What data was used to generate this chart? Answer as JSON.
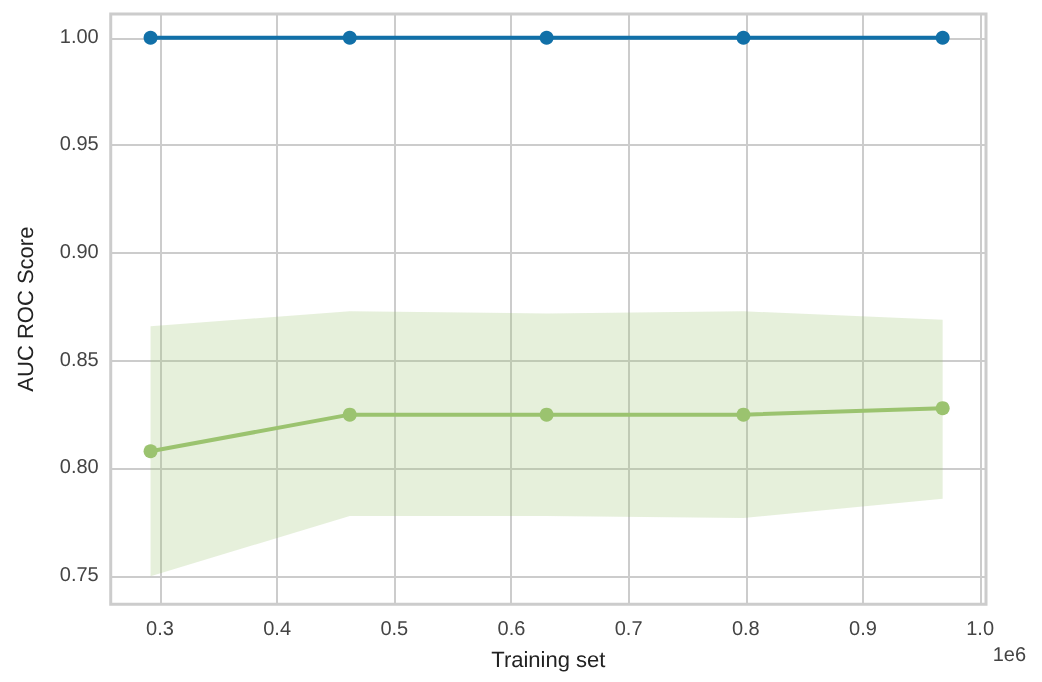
{
  "chart_data": {
    "type": "line",
    "xlabel": "Training set",
    "ylabel": "AUC ROC Score",
    "x": [
      0.292,
      0.462,
      0.63,
      0.798,
      0.968
    ],
    "series": [
      {
        "color": "#1170a8",
        "values": [
          1.0,
          1.0,
          1.0,
          1.0,
          1.0
        ]
      },
      {
        "color": "#9bc36f",
        "values": [
          0.808,
          0.825,
          0.825,
          0.825,
          0.828
        ],
        "lower": [
          0.75,
          0.778,
          0.778,
          0.777,
          0.786
        ],
        "upper": [
          0.866,
          0.873,
          0.872,
          0.873,
          0.869
        ]
      }
    ],
    "xlim": [
      0.258,
      1.005
    ],
    "xticks": [
      0.3,
      0.4,
      0.5,
      0.6,
      0.7,
      0.8,
      0.9,
      {
        "value": 1.0,
        "label": "1.0"
      }
    ],
    "ylim": [
      0.737,
      1.011
    ],
    "yticks": [
      0.75,
      {
        "value": 0.8,
        "label": "0.80"
      },
      0.85,
      {
        "value": 0.9,
        "label": "0.90"
      },
      0.95,
      {
        "value": 1.0,
        "label": "1.00"
      }
    ],
    "annotations": [
      "1e6"
    ],
    "grid": true,
    "marker": "circle",
    "line_style": "solid"
  }
}
